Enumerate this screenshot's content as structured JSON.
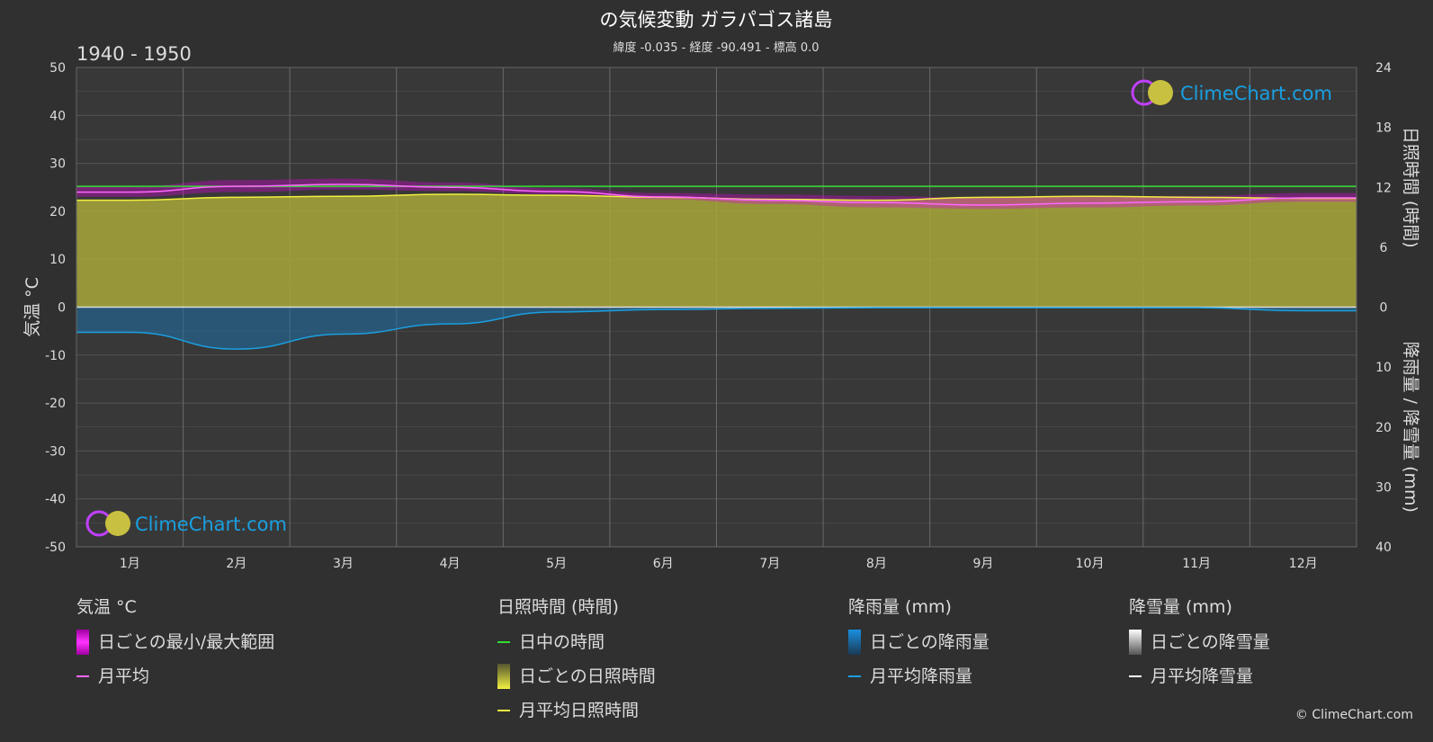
{
  "title": "の気候変動 ガラパゴス諸島",
  "subtitle": "緯度 -0.035 - 経度 -90.491 - 標高 0.0",
  "period": "1940 - 1950",
  "logo_text": "ClimeChart.com",
  "copyright": "© ClimeChart.com",
  "colors": {
    "background": "#303030",
    "grid": "#555555",
    "minmax_range": "#e000e0",
    "temp_avg": "#ff66ff",
    "daylight": "#33dd33",
    "sunshine_fill": "#a8a83a",
    "sunshine_avg": "#f0f040",
    "rain_fill": "#1e6fa8",
    "rain_avg": "#1a9fe0",
    "snow": "#ffffff"
  },
  "chart_data": {
    "type": "area",
    "months": [
      "1月",
      "2月",
      "3月",
      "4月",
      "5月",
      "6月",
      "7月",
      "8月",
      "9月",
      "10月",
      "11月",
      "12月"
    ],
    "y_left": {
      "label": "気温 °C",
      "range": [
        -50,
        50
      ],
      "ticks": [
        50,
        40,
        30,
        20,
        10,
        0,
        -10,
        -20,
        -30,
        -40,
        -50
      ]
    },
    "y_right_top": {
      "label": "日照時間 (時間)",
      "range": [
        0,
        24
      ],
      "ticks": [
        24,
        18,
        12,
        6,
        0
      ]
    },
    "y_right_bottom": {
      "label": "降雨量 / 降雪量 (mm)",
      "range": [
        0,
        40
      ],
      "ticks": [
        10,
        20,
        30,
        40
      ]
    },
    "grid": true,
    "series": {
      "temp_avg_monthly": [
        24.0,
        25.2,
        25.6,
        25.0,
        24.1,
        23.0,
        22.3,
        21.8,
        21.3,
        21.7,
        22.0,
        22.8
      ],
      "temp_daily_max_monthly": [
        25.2,
        26.5,
        26.8,
        26.0,
        24.8,
        23.8,
        23.5,
        23.2,
        22.8,
        23.0,
        23.2,
        23.8
      ],
      "temp_daily_min_monthly": [
        23.0,
        24.0,
        24.5,
        24.2,
        23.5,
        22.5,
        21.5,
        20.8,
        20.5,
        20.8,
        21.2,
        22.0
      ],
      "daylight_hours": [
        12.1,
        12.1,
        12.1,
        12.1,
        12.1,
        12.1,
        12.1,
        12.1,
        12.1,
        12.1,
        12.1,
        12.1
      ],
      "sunshine_avg_monthly": [
        10.7,
        11.0,
        11.1,
        11.3,
        11.2,
        11.0,
        10.8,
        10.7,
        11.0,
        11.1,
        11.0,
        10.9
      ],
      "rain_avg_monthly_mm": [
        4.2,
        7.0,
        4.5,
        2.8,
        0.8,
        0.4,
        0.2,
        0.1,
        0.1,
        0.1,
        0.1,
        0.6
      ],
      "snow_avg_monthly_mm": [
        0,
        0,
        0,
        0,
        0,
        0,
        0,
        0,
        0,
        0,
        0,
        0
      ]
    }
  },
  "legend": {
    "temp": {
      "header": "気温 °C",
      "items": [
        "日ごとの最小/最大範囲",
        "月平均"
      ]
    },
    "sun": {
      "header": "日照時間 (時間)",
      "items": [
        "日中の時間",
        "日ごとの日照時間",
        "月平均日照時間"
      ]
    },
    "rain": {
      "header": "降雨量 (mm)",
      "items": [
        "日ごとの降雨量",
        "月平均降雨量"
      ]
    },
    "snow": {
      "header": "降雪量 (mm)",
      "items": [
        "日ごとの降雪量",
        "月平均降雪量"
      ]
    }
  }
}
